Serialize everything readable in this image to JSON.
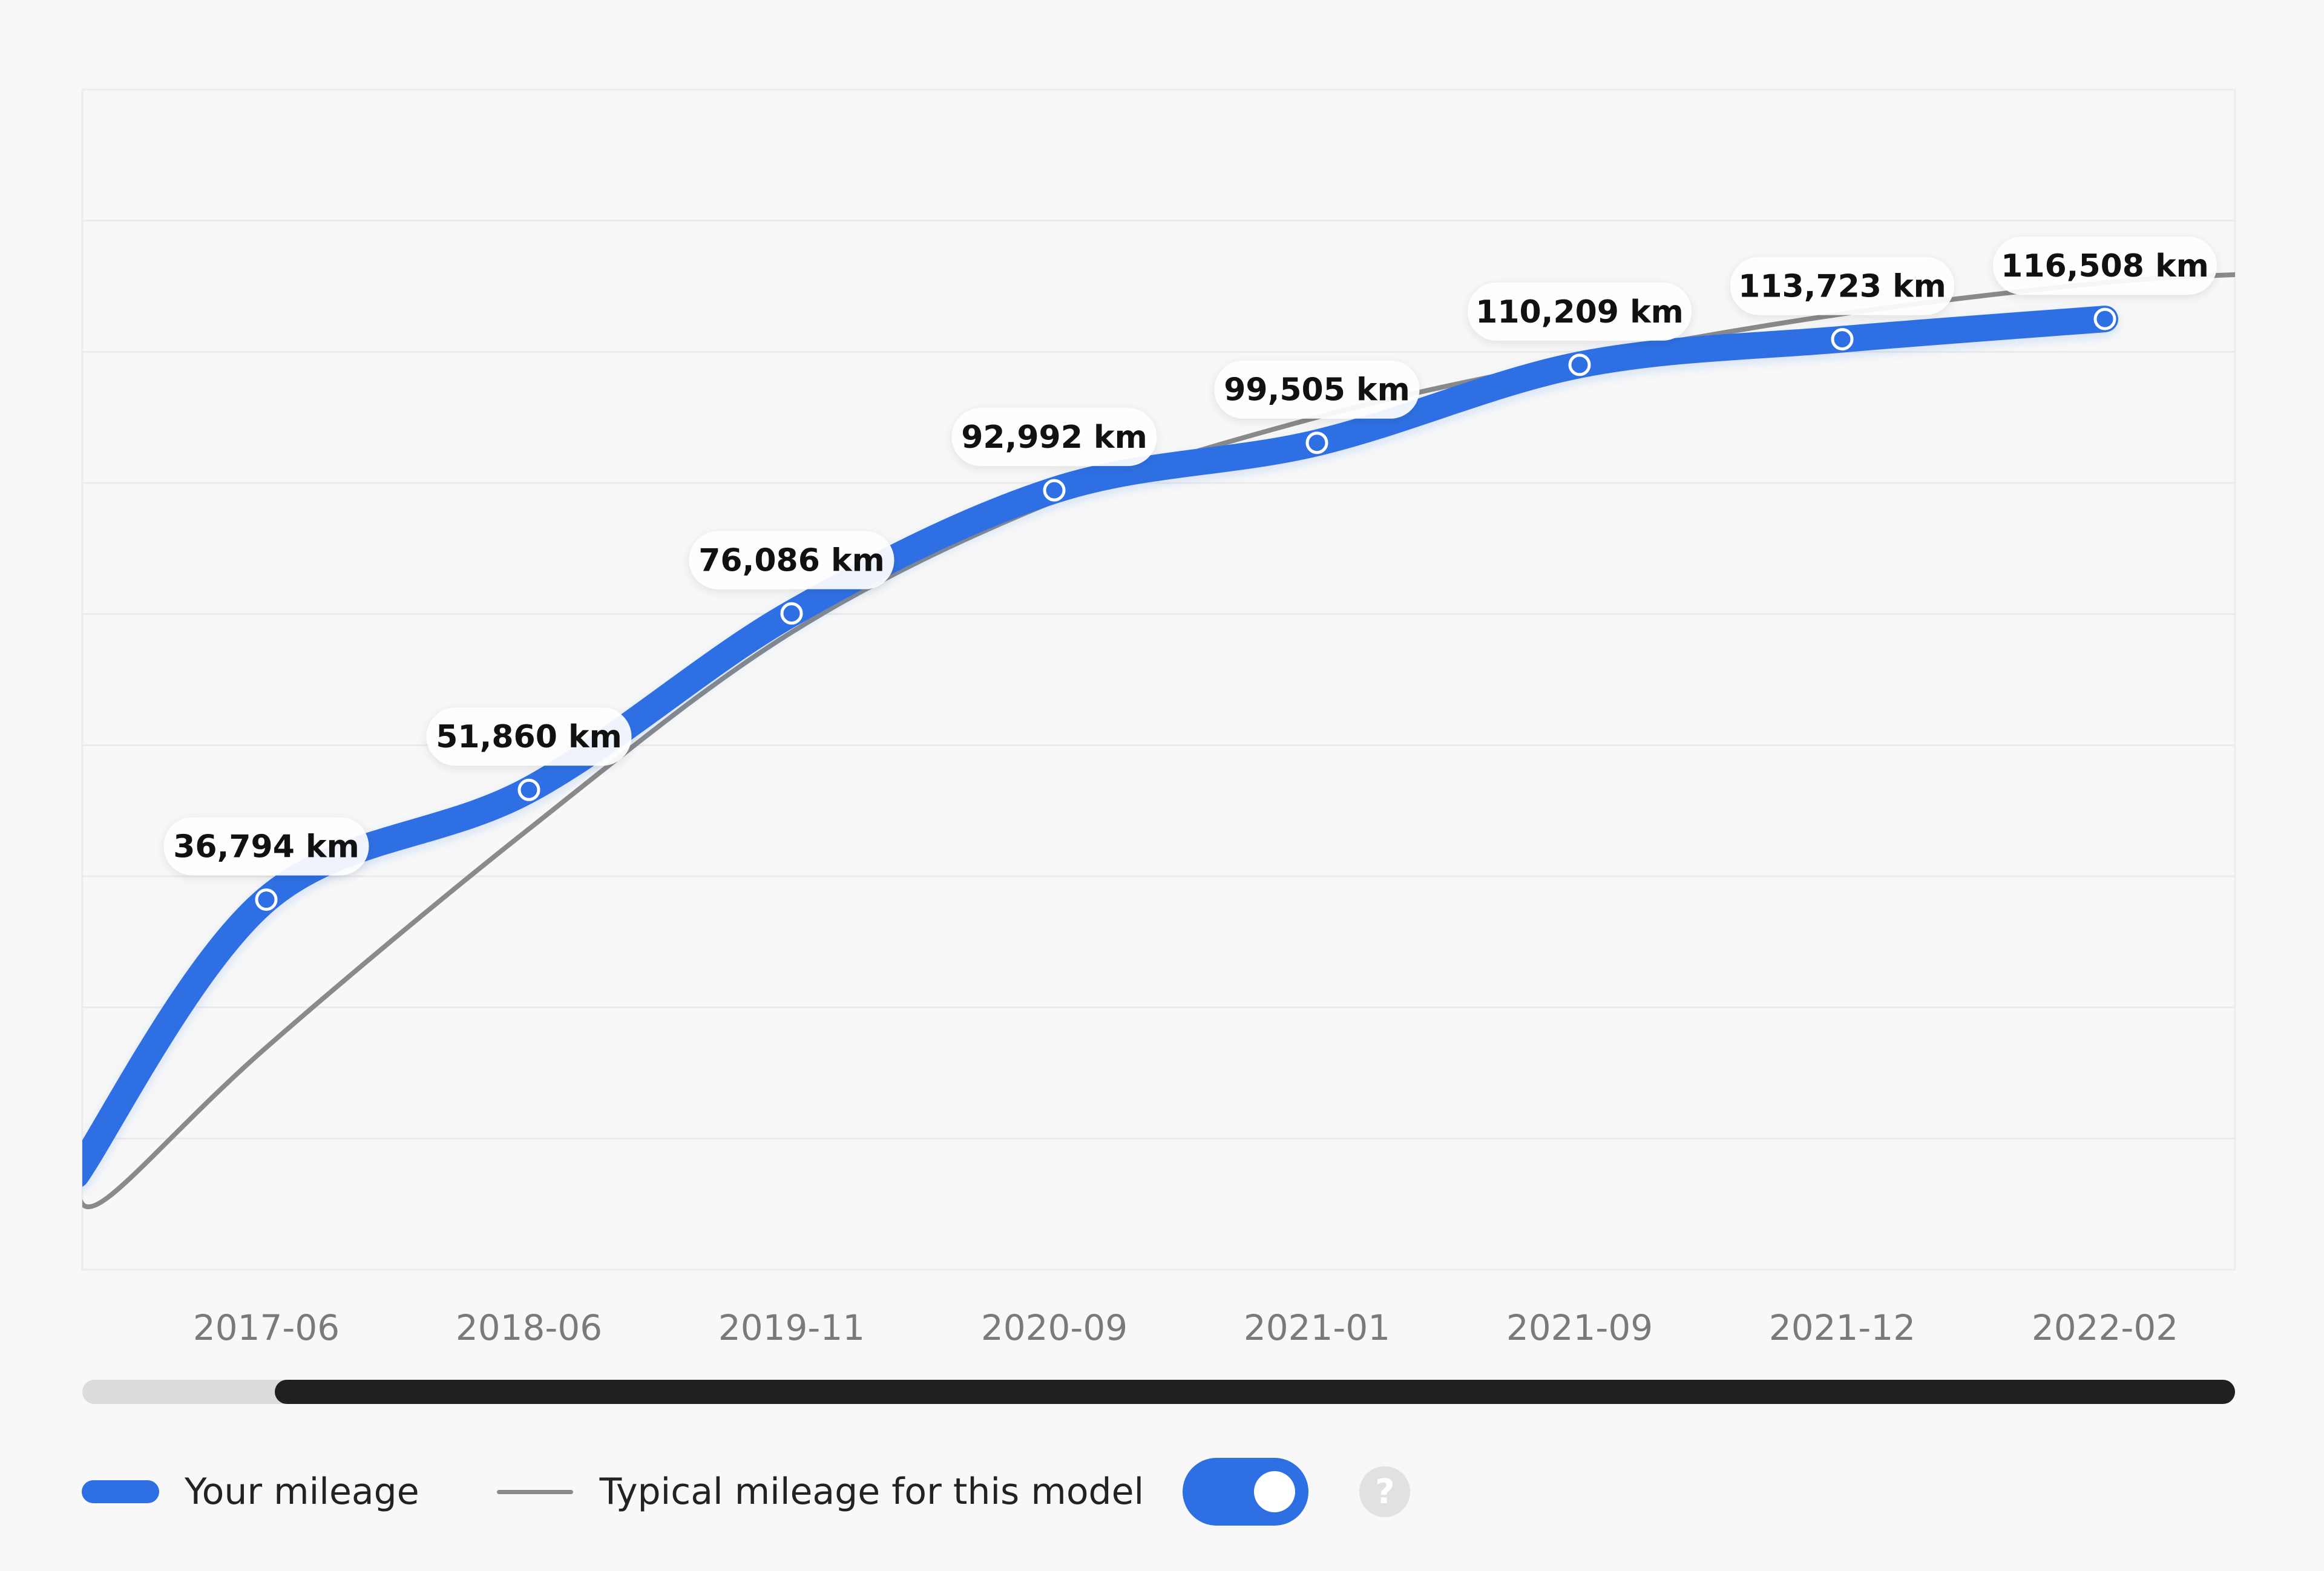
{
  "chart_data": {
    "type": "line",
    "categories": [
      "2017-06",
      "2018-06",
      "2019-11",
      "2020-09",
      "2021-01",
      "2021-09",
      "2021-12",
      "2022-02"
    ],
    "series": [
      {
        "name": "Your mileage",
        "values": [
          36794,
          51860,
          76086,
          92992,
          99505,
          110209,
          113723,
          116508
        ],
        "data_labels": [
          "36,794 km",
          "51,860 km",
          "76,086 km",
          "92,992 km",
          "99,505 km",
          "110,209 km",
          "113,723 km",
          "116,508 km"
        ],
        "color": "#2f6fe4"
      },
      {
        "name": "Typical mileage for this model",
        "color": "#8a8a8a"
      }
    ],
    "grid": true,
    "legend_position": "bottom-left"
  },
  "legend": {
    "mine_label": "Your mileage",
    "typical_label": "Typical mileage for this model"
  },
  "controls": {
    "typical_toggle_on": true,
    "help_glyph": "?"
  },
  "icons": {
    "help": "question-mark-icon"
  },
  "colors": {
    "accent": "#2f6fe4",
    "typical": "#8a8a8a",
    "scroll_thumb": "#202020",
    "scroll_track": "#dcdcdc"
  }
}
